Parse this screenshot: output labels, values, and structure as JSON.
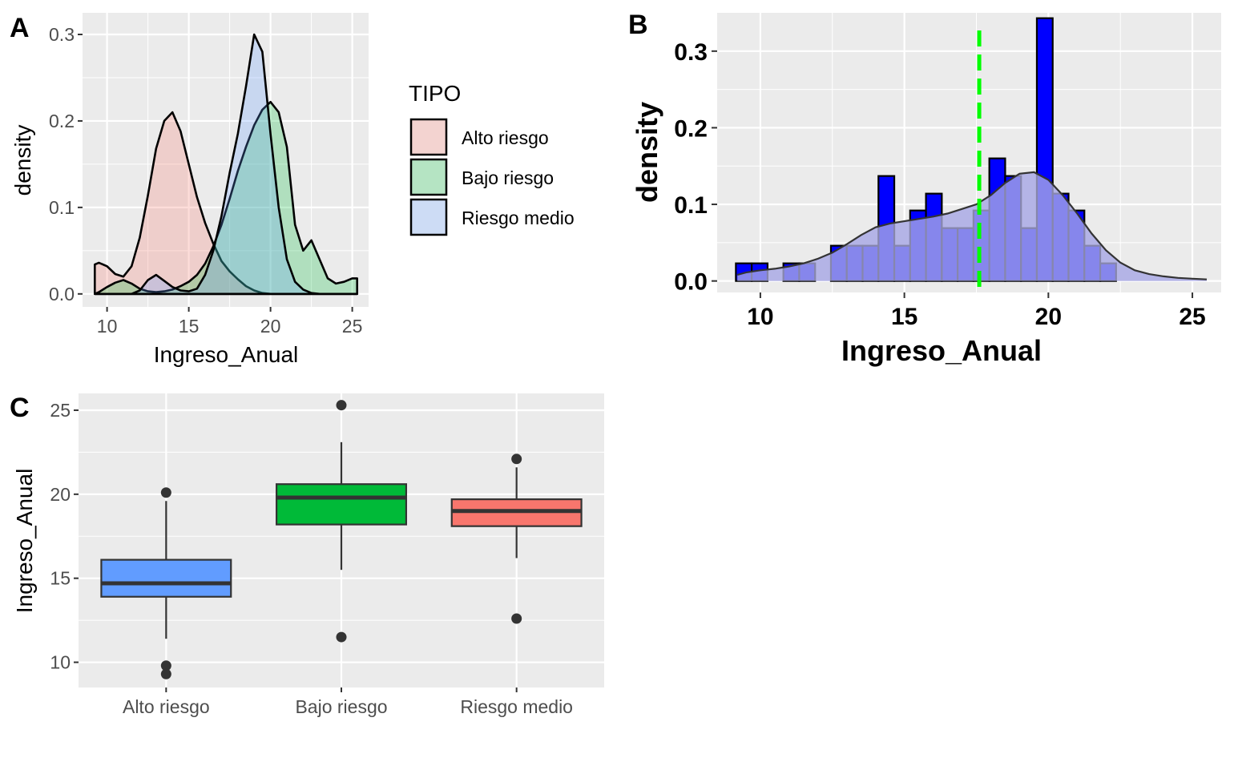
{
  "panels": {
    "A": {
      "tag": "A"
    },
    "B": {
      "tag": "B"
    },
    "C": {
      "tag": "C"
    }
  },
  "chart_data": [
    {
      "panel": "A",
      "type": "area",
      "title": "",
      "xlabel": "Ingreso_Anual",
      "ylabel": "density",
      "xlim": [
        8.5,
        26
      ],
      "ylim": [
        -0.015,
        0.325
      ],
      "xticks": [
        10,
        15,
        20,
        25
      ],
      "yticks": [
        0.0,
        0.1,
        0.2,
        0.3
      ],
      "ytick_labels": [
        "0.0",
        "0.1",
        "0.2",
        "0.3"
      ],
      "legend": {
        "title": "TIPO",
        "position": "right"
      },
      "x": [
        9.25,
        9.5,
        10,
        10.5,
        11,
        11.5,
        12,
        12.5,
        13,
        13.5,
        14,
        14.5,
        15,
        15.5,
        16,
        16.5,
        17,
        17.5,
        18,
        18.5,
        19,
        19.5,
        20,
        20.5,
        21,
        21.5,
        22,
        22.5,
        23,
        23.5,
        24,
        24.5,
        25,
        25.3
      ],
      "series": [
        {
          "name": "Alto riesgo",
          "color": "#F8766D",
          "values": [
            0.034,
            0.036,
            0.032,
            0.023,
            0.02,
            0.032,
            0.065,
            0.114,
            0.168,
            0.2,
            0.21,
            0.188,
            0.15,
            0.112,
            0.082,
            0.058,
            0.038,
            0.026,
            0.017,
            0.009,
            0.004,
            0.001,
            0.0,
            0.0,
            0.0,
            0.0,
            0.0,
            0.0,
            0.0,
            0.0,
            0.0,
            0.0,
            0.0,
            0.0
          ]
        },
        {
          "name": "Bajo riesgo",
          "color": "#00BA38",
          "values": [
            0.0,
            0.002,
            0.008,
            0.013,
            0.016,
            0.012,
            0.006,
            0.003,
            0.002,
            0.003,
            0.005,
            0.009,
            0.014,
            0.022,
            0.035,
            0.055,
            0.08,
            0.11,
            0.142,
            0.17,
            0.195,
            0.213,
            0.222,
            0.21,
            0.17,
            0.08,
            0.05,
            0.062,
            0.04,
            0.018,
            0.012,
            0.014,
            0.018,
            0.018
          ]
        },
        {
          "name": "Riesgo medio",
          "color": "#619CFF",
          "values": [
            0.0,
            0.0,
            0.0,
            0.0,
            0.0,
            0.0,
            0.004,
            0.016,
            0.022,
            0.015,
            0.008,
            0.004,
            0.003,
            0.006,
            0.022,
            0.05,
            0.09,
            0.14,
            0.185,
            0.24,
            0.3,
            0.28,
            0.185,
            0.1,
            0.04,
            0.014,
            0.005,
            0.001,
            0.0,
            0.0,
            0.0,
            0.0,
            0.0,
            0.0
          ]
        }
      ]
    },
    {
      "panel": "B",
      "type": "bar",
      "title": "",
      "xlabel": "Ingreso_Anual",
      "ylabel": "density",
      "xlim": [
        8.5,
        26
      ],
      "ylim": [
        -0.015,
        0.35
      ],
      "xticks": [
        10,
        15,
        20,
        25
      ],
      "yticks": [
        0.0,
        0.1,
        0.2,
        0.3
      ],
      "ytick_labels": [
        "0.0",
        "0.1",
        "0.2",
        "0.3"
      ],
      "bar_color": "#0000FF",
      "density_fill": "#B3B3E6",
      "mean_line": {
        "value": 17.6,
        "color": "#00FF00"
      },
      "bin_width": 0.55,
      "bin_start": 9.15,
      "values": [
        0.023,
        0.023,
        0.0,
        0.023,
        0.023,
        0.0,
        0.046,
        0.046,
        0.046,
        0.137,
        0.046,
        0.092,
        0.114,
        0.069,
        0.069,
        0.092,
        0.16,
        0.137,
        0.069,
        0.343,
        0.114,
        0.092,
        0.046,
        0.023,
        0.0,
        0.0,
        0.0,
        0.0,
        0.0,
        0.0
      ],
      "density_x": [
        9.2,
        9.5,
        10,
        10.5,
        11,
        11.5,
        12,
        12.5,
        13,
        13.5,
        14,
        14.5,
        15,
        15.5,
        16,
        16.5,
        17,
        17.5,
        18,
        18.5,
        19,
        19.5,
        20,
        20.5,
        21,
        21.5,
        22,
        22.5,
        23,
        23.5,
        24,
        24.5,
        25,
        25.5
      ],
      "density_y": [
        0.008,
        0.011,
        0.014,
        0.016,
        0.019,
        0.023,
        0.029,
        0.037,
        0.048,
        0.06,
        0.07,
        0.075,
        0.078,
        0.081,
        0.084,
        0.088,
        0.094,
        0.1,
        0.112,
        0.128,
        0.14,
        0.142,
        0.132,
        0.112,
        0.088,
        0.062,
        0.04,
        0.024,
        0.014,
        0.009,
        0.006,
        0.004,
        0.003,
        0.002
      ]
    },
    {
      "panel": "C",
      "type": "box",
      "title": "",
      "xlabel": "",
      "ylabel": "Ingreso_Anual",
      "ylim": [
        8.5,
        26
      ],
      "yticks": [
        10,
        15,
        20,
        25
      ],
      "categories": [
        "Alto riesgo",
        "Bajo riesgo",
        "Riesgo medio"
      ],
      "boxes": [
        {
          "name": "Alto riesgo",
          "color": "#619CFF",
          "lower_whisker": 11.4,
          "q1": 13.9,
          "median": 14.7,
          "q3": 16.1,
          "upper_whisker": 19.6,
          "outliers": [
            20.1,
            9.8,
            9.3
          ]
        },
        {
          "name": "Bajo riesgo",
          "color": "#00BA38",
          "lower_whisker": 15.5,
          "q1": 18.2,
          "median": 19.8,
          "q3": 20.6,
          "upper_whisker": 23.1,
          "outliers": [
            25.3,
            11.5
          ]
        },
        {
          "name": "Riesgo medio",
          "color": "#F8766D",
          "lower_whisker": 16.2,
          "q1": 18.1,
          "median": 19.0,
          "q3": 19.7,
          "upper_whisker": 21.6,
          "outliers": [
            22.1,
            12.6
          ]
        }
      ]
    }
  ]
}
